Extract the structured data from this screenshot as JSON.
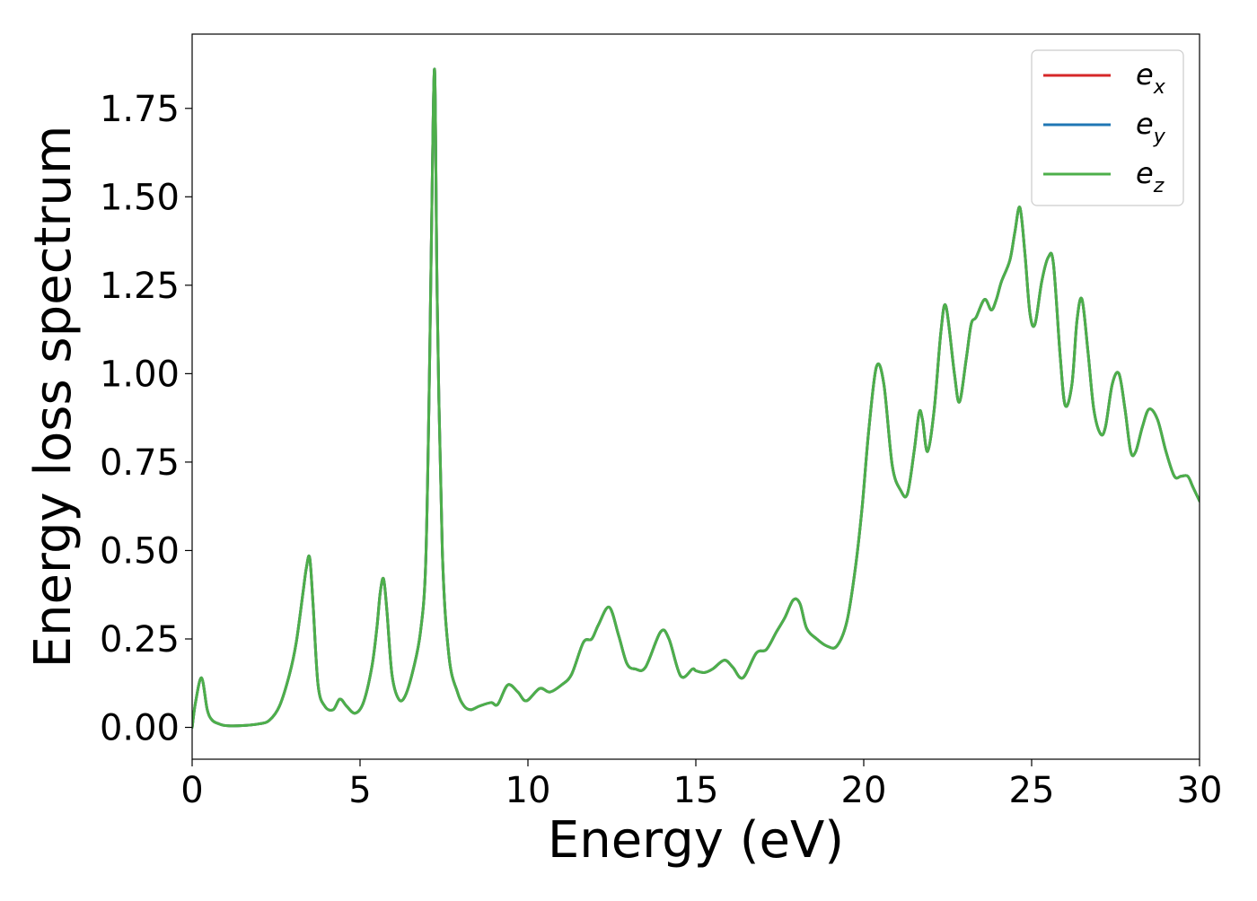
{
  "chart_data": {
    "type": "line",
    "title": "",
    "xlabel": "Energy (eV)",
    "ylabel": "Energy loss spectrum",
    "xlim": [
      0,
      30
    ],
    "ylim": [
      -0.09,
      1.96
    ],
    "xticks": [
      0,
      5,
      10,
      15,
      20,
      25,
      30
    ],
    "xtick_labels": [
      "0",
      "5",
      "10",
      "15",
      "20",
      "25",
      "30"
    ],
    "yticks": [
      0.0,
      0.25,
      0.5,
      0.75,
      1.0,
      1.25,
      1.5,
      1.75
    ],
    "ytick_labels": [
      "0.00",
      "0.25",
      "0.50",
      "0.75",
      "1.00",
      "1.25",
      "1.50",
      "1.75"
    ],
    "grid": false,
    "legend_position": "top-right",
    "legend": [
      {
        "base": "e",
        "sub": "x",
        "color": "#d62728"
      },
      {
        "base": "e",
        "sub": "y",
        "color": "#1f77b4"
      },
      {
        "base": "e",
        "sub": "z",
        "color": "#4daf4a"
      }
    ],
    "note": "All three series (e_x, e_y, e_z) are identical; e_z (green) is drawn on top.",
    "series": [
      {
        "name": "e_x",
        "color": "#d62728",
        "x": [
          0,
          0.1,
          0.28,
          0.45,
          0.6,
          0.8,
          1.0,
          1.5,
          2.0,
          2.3,
          2.6,
          2.9,
          3.1,
          3.3,
          3.4,
          3.5,
          3.6,
          3.75,
          3.95,
          4.2,
          4.4,
          4.6,
          4.85,
          5.1,
          5.35,
          5.5,
          5.6,
          5.7,
          5.8,
          5.95,
          6.15,
          6.35,
          6.6,
          6.8,
          6.95,
          7.05,
          7.12,
          7.22,
          7.3,
          7.45,
          7.65,
          7.9,
          8.1,
          8.3,
          8.55,
          8.9,
          9.1,
          9.4,
          9.7,
          9.95,
          10.35,
          10.65,
          11.0,
          11.3,
          11.65,
          11.9,
          12.1,
          12.42,
          12.7,
          12.95,
          13.2,
          13.5,
          13.95,
          14.2,
          14.55,
          14.9,
          15.0,
          15.25,
          15.5,
          15.85,
          16.1,
          16.4,
          16.8,
          17.1,
          17.4,
          17.65,
          17.9,
          18.1,
          18.3,
          18.6,
          18.9,
          19.2,
          19.5,
          19.75,
          19.95,
          20.15,
          20.38,
          20.6,
          20.85,
          21.1,
          21.3,
          21.5,
          21.65,
          21.75,
          21.9,
          22.1,
          22.3,
          22.45,
          22.7,
          22.85,
          23.05,
          23.2,
          23.35,
          23.6,
          23.8,
          23.95,
          24.1,
          24.35,
          24.5,
          24.65,
          24.8,
          24.95,
          25.1,
          25.3,
          25.5,
          25.65,
          25.85,
          26.0,
          26.2,
          26.35,
          26.5,
          26.68,
          26.85,
          27.05,
          27.2,
          27.4,
          27.6,
          27.78,
          27.95,
          28.1,
          28.3,
          28.5,
          28.75,
          29.0,
          29.25,
          29.45,
          29.65,
          29.8,
          30.0
        ],
        "y": [
          0.0,
          0.07,
          0.14,
          0.05,
          0.02,
          0.01,
          0.005,
          0.005,
          0.01,
          0.02,
          0.06,
          0.15,
          0.24,
          0.38,
          0.45,
          0.48,
          0.35,
          0.12,
          0.06,
          0.05,
          0.08,
          0.06,
          0.04,
          0.07,
          0.17,
          0.28,
          0.38,
          0.42,
          0.33,
          0.15,
          0.08,
          0.09,
          0.17,
          0.27,
          0.45,
          0.9,
          1.35,
          1.86,
          1.2,
          0.5,
          0.2,
          0.1,
          0.06,
          0.05,
          0.06,
          0.07,
          0.065,
          0.12,
          0.1,
          0.075,
          0.11,
          0.1,
          0.12,
          0.15,
          0.24,
          0.25,
          0.29,
          0.34,
          0.26,
          0.18,
          0.165,
          0.17,
          0.27,
          0.25,
          0.145,
          0.165,
          0.16,
          0.155,
          0.165,
          0.19,
          0.17,
          0.14,
          0.21,
          0.22,
          0.27,
          0.31,
          0.36,
          0.35,
          0.28,
          0.25,
          0.23,
          0.23,
          0.3,
          0.45,
          0.62,
          0.84,
          1.02,
          0.97,
          0.74,
          0.67,
          0.66,
          0.78,
          0.89,
          0.87,
          0.78,
          0.9,
          1.12,
          1.19,
          1.0,
          0.92,
          1.04,
          1.14,
          1.16,
          1.21,
          1.18,
          1.21,
          1.26,
          1.32,
          1.4,
          1.47,
          1.34,
          1.17,
          1.14,
          1.26,
          1.33,
          1.31,
          1.05,
          0.91,
          0.97,
          1.15,
          1.21,
          1.06,
          0.9,
          0.83,
          0.85,
          0.97,
          1.0,
          0.9,
          0.78,
          0.78,
          0.85,
          0.9,
          0.87,
          0.78,
          0.71,
          0.71,
          0.71,
          0.68,
          0.64
        ]
      },
      {
        "name": "e_y",
        "color": "#1f77b4",
        "x": [
          0,
          0.1,
          0.28,
          0.45,
          0.6,
          0.8,
          1.0,
          1.5,
          2.0,
          2.3,
          2.6,
          2.9,
          3.1,
          3.3,
          3.4,
          3.5,
          3.6,
          3.75,
          3.95,
          4.2,
          4.4,
          4.6,
          4.85,
          5.1,
          5.35,
          5.5,
          5.6,
          5.7,
          5.8,
          5.95,
          6.15,
          6.35,
          6.6,
          6.8,
          6.95,
          7.05,
          7.12,
          7.22,
          7.3,
          7.45,
          7.65,
          7.9,
          8.1,
          8.3,
          8.55,
          8.9,
          9.1,
          9.4,
          9.7,
          9.95,
          10.35,
          10.65,
          11.0,
          11.3,
          11.65,
          11.9,
          12.1,
          12.42,
          12.7,
          12.95,
          13.2,
          13.5,
          13.95,
          14.2,
          14.55,
          14.9,
          15.0,
          15.25,
          15.5,
          15.85,
          16.1,
          16.4,
          16.8,
          17.1,
          17.4,
          17.65,
          17.9,
          18.1,
          18.3,
          18.6,
          18.9,
          19.2,
          19.5,
          19.75,
          19.95,
          20.15,
          20.38,
          20.6,
          20.85,
          21.1,
          21.3,
          21.5,
          21.65,
          21.75,
          21.9,
          22.1,
          22.3,
          22.45,
          22.7,
          22.85,
          23.05,
          23.2,
          23.35,
          23.6,
          23.8,
          23.95,
          24.1,
          24.35,
          24.5,
          24.65,
          24.8,
          24.95,
          25.1,
          25.3,
          25.5,
          25.65,
          25.85,
          26.0,
          26.2,
          26.35,
          26.5,
          26.68,
          26.85,
          27.05,
          27.2,
          27.4,
          27.6,
          27.78,
          27.95,
          28.1,
          28.3,
          28.5,
          28.75,
          29.0,
          29.25,
          29.45,
          29.65,
          29.8,
          30.0
        ],
        "y": [
          0.0,
          0.07,
          0.14,
          0.05,
          0.02,
          0.01,
          0.005,
          0.005,
          0.01,
          0.02,
          0.06,
          0.15,
          0.24,
          0.38,
          0.45,
          0.48,
          0.35,
          0.12,
          0.06,
          0.05,
          0.08,
          0.06,
          0.04,
          0.07,
          0.17,
          0.28,
          0.38,
          0.42,
          0.33,
          0.15,
          0.08,
          0.09,
          0.17,
          0.27,
          0.45,
          0.9,
          1.35,
          1.86,
          1.2,
          0.5,
          0.2,
          0.1,
          0.06,
          0.05,
          0.06,
          0.07,
          0.065,
          0.12,
          0.1,
          0.075,
          0.11,
          0.1,
          0.12,
          0.15,
          0.24,
          0.25,
          0.29,
          0.34,
          0.26,
          0.18,
          0.165,
          0.17,
          0.27,
          0.25,
          0.145,
          0.165,
          0.16,
          0.155,
          0.165,
          0.19,
          0.17,
          0.14,
          0.21,
          0.22,
          0.27,
          0.31,
          0.36,
          0.35,
          0.28,
          0.25,
          0.23,
          0.23,
          0.3,
          0.45,
          0.62,
          0.84,
          1.02,
          0.97,
          0.74,
          0.67,
          0.66,
          0.78,
          0.89,
          0.87,
          0.78,
          0.9,
          1.12,
          1.19,
          1.0,
          0.92,
          1.04,
          1.14,
          1.16,
          1.21,
          1.18,
          1.21,
          1.26,
          1.32,
          1.4,
          1.47,
          1.34,
          1.17,
          1.14,
          1.26,
          1.33,
          1.31,
          1.05,
          0.91,
          0.97,
          1.15,
          1.21,
          1.06,
          0.9,
          0.83,
          0.85,
          0.97,
          1.0,
          0.9,
          0.78,
          0.78,
          0.85,
          0.9,
          0.87,
          0.78,
          0.71,
          0.71,
          0.71,
          0.68,
          0.64
        ]
      },
      {
        "name": "e_z",
        "color": "#4daf4a",
        "x": [
          0,
          0.1,
          0.28,
          0.45,
          0.6,
          0.8,
          1.0,
          1.5,
          2.0,
          2.3,
          2.6,
          2.9,
          3.1,
          3.3,
          3.4,
          3.5,
          3.6,
          3.75,
          3.95,
          4.2,
          4.4,
          4.6,
          4.85,
          5.1,
          5.35,
          5.5,
          5.6,
          5.7,
          5.8,
          5.95,
          6.15,
          6.35,
          6.6,
          6.8,
          6.95,
          7.05,
          7.12,
          7.22,
          7.3,
          7.45,
          7.65,
          7.9,
          8.1,
          8.3,
          8.55,
          8.9,
          9.1,
          9.4,
          9.7,
          9.95,
          10.35,
          10.65,
          11.0,
          11.3,
          11.65,
          11.9,
          12.1,
          12.42,
          12.7,
          12.95,
          13.2,
          13.5,
          13.95,
          14.2,
          14.55,
          14.9,
          15.0,
          15.25,
          15.5,
          15.85,
          16.1,
          16.4,
          16.8,
          17.1,
          17.4,
          17.65,
          17.9,
          18.1,
          18.3,
          18.6,
          18.9,
          19.2,
          19.5,
          19.75,
          19.95,
          20.15,
          20.38,
          20.6,
          20.85,
          21.1,
          21.3,
          21.5,
          21.65,
          21.75,
          21.9,
          22.1,
          22.3,
          22.45,
          22.7,
          22.85,
          23.05,
          23.2,
          23.35,
          23.6,
          23.8,
          23.95,
          24.1,
          24.35,
          24.5,
          24.65,
          24.8,
          24.95,
          25.1,
          25.3,
          25.5,
          25.65,
          25.85,
          26.0,
          26.2,
          26.35,
          26.5,
          26.68,
          26.85,
          27.05,
          27.2,
          27.4,
          27.6,
          27.78,
          27.95,
          28.1,
          28.3,
          28.5,
          28.75,
          29.0,
          29.25,
          29.45,
          29.65,
          29.8,
          30.0
        ],
        "y": [
          0.0,
          0.07,
          0.14,
          0.05,
          0.02,
          0.01,
          0.005,
          0.005,
          0.01,
          0.02,
          0.06,
          0.15,
          0.24,
          0.38,
          0.45,
          0.48,
          0.35,
          0.12,
          0.06,
          0.05,
          0.08,
          0.06,
          0.04,
          0.07,
          0.17,
          0.28,
          0.38,
          0.42,
          0.33,
          0.15,
          0.08,
          0.09,
          0.17,
          0.27,
          0.45,
          0.9,
          1.35,
          1.86,
          1.2,
          0.5,
          0.2,
          0.1,
          0.06,
          0.05,
          0.06,
          0.07,
          0.065,
          0.12,
          0.1,
          0.075,
          0.11,
          0.1,
          0.12,
          0.15,
          0.24,
          0.25,
          0.29,
          0.34,
          0.26,
          0.18,
          0.165,
          0.17,
          0.27,
          0.25,
          0.145,
          0.165,
          0.16,
          0.155,
          0.165,
          0.19,
          0.17,
          0.14,
          0.21,
          0.22,
          0.27,
          0.31,
          0.36,
          0.35,
          0.28,
          0.25,
          0.23,
          0.23,
          0.3,
          0.45,
          0.62,
          0.84,
          1.02,
          0.97,
          0.74,
          0.67,
          0.66,
          0.78,
          0.89,
          0.87,
          0.78,
          0.9,
          1.12,
          1.19,
          1.0,
          0.92,
          1.04,
          1.14,
          1.16,
          1.21,
          1.18,
          1.21,
          1.26,
          1.32,
          1.4,
          1.47,
          1.34,
          1.17,
          1.14,
          1.26,
          1.33,
          1.31,
          1.05,
          0.91,
          0.97,
          1.15,
          1.21,
          1.06,
          0.9,
          0.83,
          0.85,
          0.97,
          1.0,
          0.9,
          0.78,
          0.78,
          0.85,
          0.9,
          0.87,
          0.78,
          0.71,
          0.71,
          0.71,
          0.68,
          0.64
        ]
      }
    ]
  }
}
